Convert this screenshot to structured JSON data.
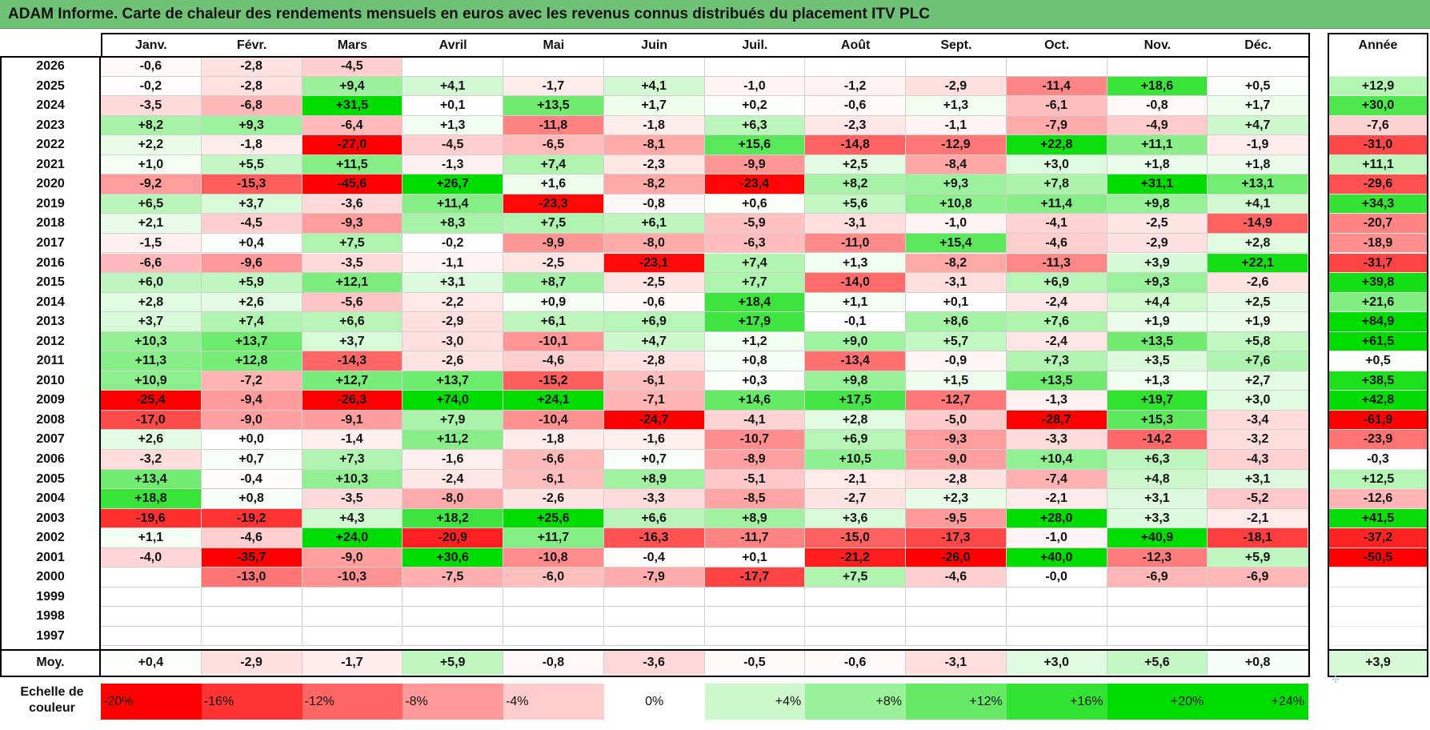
{
  "title": "ADAM Informe. Carte de chaleur des rendements mensuels en euros avec les revenus connus distribués du placement ITV PLC",
  "chart_data": {
    "type": "heatmap",
    "title": "ADAM Informe. Carte de chaleur des rendements mensuels en euros avec les revenus connus distribués du placement ITV PLC",
    "months": [
      "Janv.",
      "Févr.",
      "Mars",
      "Avril",
      "Mai",
      "Juin",
      "Juil.",
      "Août",
      "Sept.",
      "Oct.",
      "Nov.",
      "Déc."
    ],
    "annual_header": "Année",
    "rows": [
      {
        "year": "2026",
        "values": [
          "-0,6",
          "-2,8",
          "-4,5",
          "",
          "",
          "",
          "",
          "",
          "",
          "",
          "",
          ""
        ],
        "annual": ""
      },
      {
        "year": "2025",
        "values": [
          "-0,2",
          "-2,8",
          "+9,4",
          "+4,1",
          "-1,7",
          "+4,1",
          "-1,0",
          "-1,2",
          "-2,9",
          "-11,4",
          "+18,6",
          "+0,5"
        ],
        "annual": "+12,9"
      },
      {
        "year": "2024",
        "values": [
          "-3,5",
          "-6,8",
          "+31,5",
          "+0,1",
          "+13,5",
          "+1,7",
          "+0,2",
          "-0,6",
          "+1,3",
          "-6,1",
          "-0,8",
          "+1,7"
        ],
        "annual": "+30,0"
      },
      {
        "year": "2023",
        "values": [
          "+8,2",
          "+9,3",
          "-6,4",
          "+1,3",
          "-11,8",
          "-1,8",
          "+6,3",
          "-2,3",
          "-1,1",
          "-7,9",
          "-4,9",
          "+4,7"
        ],
        "annual": "-7,6"
      },
      {
        "year": "2022",
        "values": [
          "+2,2",
          "-1,8",
          "-27,0",
          "-4,5",
          "-6,5",
          "-8,1",
          "+15,6",
          "-14,8",
          "-12,9",
          "+22,8",
          "+11,1",
          "-1,9"
        ],
        "annual": "-31,0"
      },
      {
        "year": "2021",
        "values": [
          "+1,0",
          "+5,5",
          "+11,5",
          "-1,3",
          "+7,4",
          "-2,3",
          "-9,9",
          "+2,5",
          "-8,4",
          "+3,0",
          "+1,8",
          "+1,8"
        ],
        "annual": "+11,1"
      },
      {
        "year": "2020",
        "values": [
          "-9,2",
          "-15,3",
          "-45,6",
          "+26,7",
          "+1,6",
          "-8,2",
          "-23,4",
          "+8,2",
          "+9,3",
          "+7,8",
          "+31,1",
          "+13,1"
        ],
        "annual": "-29,6"
      },
      {
        "year": "2019",
        "values": [
          "+6,5",
          "+3,7",
          "-3,6",
          "+11,4",
          "-23,3",
          "-0,8",
          "+0,6",
          "+5,6",
          "+10,8",
          "+11,4",
          "+9,8",
          "+4,1"
        ],
        "annual": "+34,3"
      },
      {
        "year": "2018",
        "values": [
          "+2,1",
          "-4,5",
          "-9,3",
          "+8,3",
          "+7,5",
          "+6,1",
          "-5,9",
          "-3,1",
          "-1,0",
          "-4,1",
          "-2,5",
          "-14,9"
        ],
        "annual": "-20,7"
      },
      {
        "year": "2017",
        "values": [
          "-1,5",
          "+0,4",
          "+7,5",
          "-0,2",
          "-9,9",
          "-8,0",
          "-6,3",
          "-11,0",
          "+15,4",
          "-4,6",
          "-2,9",
          "+2,8"
        ],
        "annual": "-18,9"
      },
      {
        "year": "2016",
        "values": [
          "-6,6",
          "-9,6",
          "-3,5",
          "-1,1",
          "-2,5",
          "-23,1",
          "+7,4",
          "+1,3",
          "-8,2",
          "-11,3",
          "+3,9",
          "+22,1"
        ],
        "annual": "-31,7"
      },
      {
        "year": "2015",
        "values": [
          "+6,0",
          "+5,9",
          "+12,1",
          "+3,1",
          "+8,7",
          "-2,5",
          "+7,7",
          "-14,0",
          "-3,1",
          "+6,9",
          "+9,3",
          "-2,6"
        ],
        "annual": "+39,8"
      },
      {
        "year": "2014",
        "values": [
          "+2,8",
          "+2,6",
          "-5,6",
          "-2,2",
          "+0,9",
          "-0,6",
          "+18,4",
          "+1,1",
          "+0,1",
          "-2,4",
          "+4,4",
          "+2,5"
        ],
        "annual": "+21,6"
      },
      {
        "year": "2013",
        "values": [
          "+3,7",
          "+7,4",
          "+6,6",
          "-2,9",
          "+6,1",
          "+6,9",
          "+17,9",
          "-0,1",
          "+8,6",
          "+7,6",
          "+1,9",
          "+1,9"
        ],
        "annual": "+84,9"
      },
      {
        "year": "2012",
        "values": [
          "+10,3",
          "+13,7",
          "+3,7",
          "-3,0",
          "-10,1",
          "+4,7",
          "+1,2",
          "+9,0",
          "+5,7",
          "-2,4",
          "+13,5",
          "+5,8"
        ],
        "annual": "+61,5"
      },
      {
        "year": "2011",
        "values": [
          "+11,3",
          "+12,8",
          "-14,3",
          "-2,6",
          "-4,6",
          "-2,8",
          "+0,8",
          "-13,4",
          "-0,9",
          "+7,3",
          "+3,5",
          "+7,6"
        ],
        "annual": "+0,5"
      },
      {
        "year": "2010",
        "values": [
          "+10,9",
          "-7,2",
          "+12,7",
          "+13,7",
          "-15,2",
          "-6,1",
          "+0,3",
          "+9,8",
          "+1,5",
          "+13,5",
          "+1,3",
          "+2,7"
        ],
        "annual": "+38,5"
      },
      {
        "year": "2009",
        "values": [
          "-25,4",
          "-9,4",
          "-26,3",
          "+74,0",
          "+24,1",
          "-7,1",
          "+14,6",
          "+17,5",
          "-12,7",
          "-1,3",
          "+19,7",
          "+3,0"
        ],
        "annual": "+42,8"
      },
      {
        "year": "2008",
        "values": [
          "-17,0",
          "-9,0",
          "-9,1",
          "+7,9",
          "-10,4",
          "-24,7",
          "-4,1",
          "+2,8",
          "-5,0",
          "-28,7",
          "+15,3",
          "-3,4"
        ],
        "annual": "-61,9"
      },
      {
        "year": "2007",
        "values": [
          "+2,6",
          "+0,0",
          "-1,4",
          "+11,2",
          "-1,8",
          "-1,6",
          "-10,7",
          "+6,9",
          "-9,3",
          "-3,3",
          "-14,2",
          "-3,2"
        ],
        "annual": "-23,9"
      },
      {
        "year": "2006",
        "values": [
          "-3,2",
          "+0,7",
          "+7,3",
          "-1,6",
          "-6,6",
          "+0,7",
          "-8,9",
          "+10,5",
          "-9,0",
          "+10,4",
          "+6,3",
          "-4,3"
        ],
        "annual": "-0,3"
      },
      {
        "year": "2005",
        "values": [
          "+13,4",
          "-0,4",
          "+10,3",
          "-2,4",
          "-6,1",
          "+8,9",
          "-5,1",
          "-2,1",
          "-2,8",
          "-7,4",
          "+4,8",
          "+3,1"
        ],
        "annual": "+12,5"
      },
      {
        "year": "2004",
        "values": [
          "+18,8",
          "+0,8",
          "-3,5",
          "-8,0",
          "-2,6",
          "-3,3",
          "-8,5",
          "-2,7",
          "+2,3",
          "-2,1",
          "+3,1",
          "-5,2"
        ],
        "annual": "-12,6"
      },
      {
        "year": "2003",
        "values": [
          "-19,6",
          "-19,2",
          "+4,3",
          "+18,2",
          "+25,6",
          "+6,6",
          "+8,9",
          "+3,6",
          "-9,5",
          "+28,0",
          "+3,3",
          "-2,1"
        ],
        "annual": "+41,5"
      },
      {
        "year": "2002",
        "values": [
          "+1,1",
          "-4,6",
          "+24,0",
          "-20,9",
          "+11,7",
          "-16,3",
          "-11,7",
          "-15,0",
          "-17,3",
          "-1,0",
          "+40,9",
          "-18,1"
        ],
        "annual": "-37,2"
      },
      {
        "year": "2001",
        "values": [
          "-4,0",
          "-35,7",
          "-9,0",
          "+30,6",
          "-10,8",
          "-0,4",
          "+0,1",
          "-21,2",
          "-26,0",
          "+40,0",
          "-12,3",
          "+5,9"
        ],
        "annual": "-50,5"
      },
      {
        "year": "2000",
        "values": [
          "",
          "-13,0",
          "-10,3",
          "-7,5",
          "-6,0",
          "-7,9",
          "-17,7",
          "+7,5",
          "-4,6",
          "-0,0",
          "-6,9",
          "-6,9"
        ],
        "annual": ""
      },
      {
        "year": "1999",
        "values": [
          "",
          "",
          "",
          "",
          "",
          "",
          "",
          "",
          "",
          "",
          "",
          ""
        ],
        "annual": ""
      },
      {
        "year": "1998",
        "values": [
          "",
          "",
          "",
          "",
          "",
          "",
          "",
          "",
          "",
          "",
          "",
          ""
        ],
        "annual": ""
      },
      {
        "year": "1997",
        "values": [
          "",
          "",
          "",
          "",
          "",
          "",
          "",
          "",
          "",
          "",
          "",
          ""
        ],
        "annual": ""
      }
    ],
    "average_label": "Moy.",
    "average_values": [
      "+0,4",
      "-2,9",
      "-1,7",
      "+5,9",
      "-0,8",
      "-3,6",
      "-0,5",
      "-0,6",
      "-3,1",
      "+3,0",
      "+5,6",
      "+0,8"
    ],
    "average_annual": "+3,9",
    "scale_label_line1": "Echelle de",
    "scale_label_line2": "couleur",
    "scale": [
      {
        "label": "-20%",
        "value": -20
      },
      {
        "label": "-16%",
        "value": -16
      },
      {
        "label": "-12%",
        "value": -12
      },
      {
        "label": "-8%",
        "value": -8
      },
      {
        "label": "-4%",
        "value": -4
      },
      {
        "label": "0%",
        "value": 0
      },
      {
        "label": "+4%",
        "value": 4
      },
      {
        "label": "+8%",
        "value": 8
      },
      {
        "label": "+12%",
        "value": 12
      },
      {
        "label": "+16%",
        "value": 16
      },
      {
        "label": "+20%",
        "value": 20
      },
      {
        "label": "+24%",
        "value": 24
      }
    ],
    "colors": {
      "title_bar": "#6fc275",
      "strong_negative": "#ff0000",
      "neutral": "#ffffff",
      "strong_positive": "#00dd00"
    }
  }
}
